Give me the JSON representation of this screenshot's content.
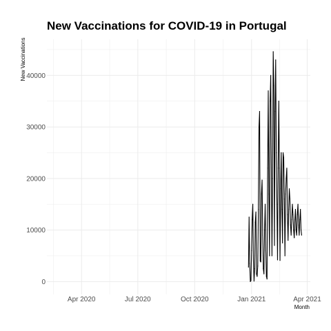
{
  "chart_data": {
    "type": "line",
    "title": "New Vaccinations for COVID-19 in Portugal",
    "xlabel": "Month",
    "ylabel": "New Vaccinations",
    "x_ticks": [
      {
        "date": "2020-04-01",
        "label": "Apr 2020"
      },
      {
        "date": "2020-07-01",
        "label": "Jul 2020"
      },
      {
        "date": "2020-10-01",
        "label": "Oct 2020"
      },
      {
        "date": "2021-01-01",
        "label": "Jan 2021"
      },
      {
        "date": "2021-04-01",
        "label": "Apr 2021"
      }
    ],
    "y_ticks": [
      0,
      10000,
      20000,
      30000,
      40000
    ],
    "xlim": [
      "2020-02-05",
      "2021-04-06"
    ],
    "ylim": [
      -2500,
      47000
    ],
    "grid": true,
    "line_color": "#000000",
    "series": [
      {
        "x": [
          "2020-12-27",
          "2020-12-28",
          "2020-12-29",
          "2020-12-30",
          "2020-12-31",
          "2021-01-01",
          "2021-01-02",
          "2021-01-03",
          "2021-01-04",
          "2021-01-05",
          "2021-01-06",
          "2021-01-07",
          "2021-01-08",
          "2021-01-09",
          "2021-01-10",
          "2021-01-11",
          "2021-01-12",
          "2021-01-13",
          "2021-01-14",
          "2021-01-15",
          "2021-01-16",
          "2021-01-17",
          "2021-01-18",
          "2021-01-19",
          "2021-01-20",
          "2021-01-21",
          "2021-01-22",
          "2021-01-23",
          "2021-01-24",
          "2021-01-25",
          "2021-01-26",
          "2021-01-27",
          "2021-01-28",
          "2021-01-29",
          "2021-01-30",
          "2021-01-31",
          "2021-02-01",
          "2021-02-02",
          "2021-02-03",
          "2021-02-04",
          "2021-02-05",
          "2021-02-06",
          "2021-02-07",
          "2021-02-08",
          "2021-02-09",
          "2021-02-10",
          "2021-02-11",
          "2021-02-12",
          "2021-02-13",
          "2021-02-14",
          "2021-02-15",
          "2021-02-16",
          "2021-02-17",
          "2021-02-18",
          "2021-02-19",
          "2021-02-20",
          "2021-02-21",
          "2021-02-22",
          "2021-02-23",
          "2021-02-24",
          "2021-02-25",
          "2021-02-26",
          "2021-02-27",
          "2021-02-28",
          "2021-03-01",
          "2021-03-02",
          "2021-03-03",
          "2021-03-04",
          "2021-03-05",
          "2021-03-06",
          "2021-03-07",
          "2021-03-08",
          "2021-03-09",
          "2021-03-10",
          "2021-03-11",
          "2021-03-12",
          "2021-03-13",
          "2021-03-14",
          "2021-03-15",
          "2021-03-16",
          "2021-03-17",
          "2021-03-18",
          "2021-03-19",
          "2021-03-20",
          "2021-03-21",
          "2021-03-22",
          "2021-03-23"
        ],
        "y": [
          2800,
          12500,
          3500,
          0,
          200,
          6000,
          12000,
          15000,
          4000,
          100,
          2500,
          11500,
          13500,
          1500,
          1000,
          3000,
          14000,
          30000,
          33000,
          4000,
          3800,
          17000,
          19700,
          9000,
          2500,
          1500,
          10000,
          15000,
          6000,
          1000,
          500,
          22000,
          37000,
          17000,
          5000,
          35000,
          40000,
          22000,
          5000,
          20000,
          44600,
          38000,
          7000,
          33000,
          43000,
          25000,
          15000,
          4200,
          22000,
          35000,
          22000,
          4100,
          18000,
          25000,
          14000,
          7500,
          25000,
          24000,
          16000,
          5000,
          17000,
          20000,
          22000,
          13000,
          8000,
          14000,
          18000,
          16000,
          11000,
          9000,
          12000,
          15000,
          13000,
          10000,
          8500,
          12000,
          14000,
          10000,
          9000,
          13000,
          15000,
          11000,
          9000,
          12000,
          14000,
          10000,
          9000
        ]
      }
    ]
  }
}
